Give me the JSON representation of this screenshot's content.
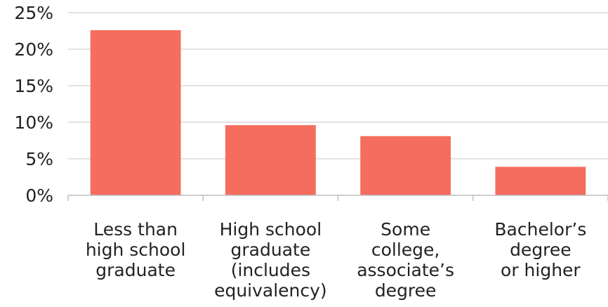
{
  "chart_data": {
    "type": "bar",
    "categories": [
      [
        "Less than",
        "high school",
        "graduate"
      ],
      [
        "High school",
        "graduate",
        "(includes",
        "equivalency)"
      ],
      [
        "Some",
        "college,",
        "associate’s",
        "degree"
      ],
      [
        "Bachelor’s",
        "degree",
        "or higher"
      ]
    ],
    "values": [
      22.6,
      9.6,
      8.1,
      3.9
    ],
    "ylim": [
      0,
      25
    ],
    "yticks": [
      0,
      5,
      10,
      15,
      20,
      25
    ],
    "ytick_labels": [
      "0%",
      "5%",
      "10%",
      "15%",
      "20%",
      "25%"
    ],
    "title": "",
    "xlabel": "",
    "ylabel": "",
    "grid": true,
    "bar_color": "#f46d5e"
  }
}
